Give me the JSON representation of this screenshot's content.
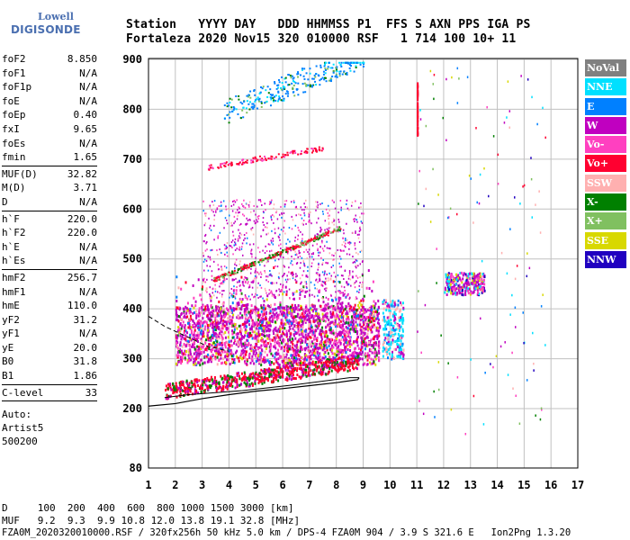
{
  "logo": {
    "line1": "Lowell",
    "line2": "DIGISONDE"
  },
  "header": {
    "line1": "Station   YYYY DAY   DDD HHMMSS P1  FFS S AXN PPS IGA PS",
    "line2": "Fortaleza 2020 Nov15 320 010000 RSF   1 714 100 10+ 11"
  },
  "params_a": [
    {
      "label": "foF2",
      "value": "8.850"
    },
    {
      "label": "foF1",
      "value": "N/A"
    },
    {
      "label": "foF1p",
      "value": "N/A"
    },
    {
      "label": "foE",
      "value": "N/A"
    },
    {
      "label": "foEp",
      "value": "0.40"
    },
    {
      "label": "fxI",
      "value": "9.65"
    },
    {
      "label": "foEs",
      "value": "N/A"
    },
    {
      "label": "fmin",
      "value": "1.65"
    }
  ],
  "params_b": [
    {
      "label": "MUF(D)",
      "value": "32.82"
    },
    {
      "label": "M(D)",
      "value": "3.71"
    },
    {
      "label": "D",
      "value": "N/A"
    }
  ],
  "params_c": [
    {
      "label": "h`F",
      "value": "220.0"
    },
    {
      "label": "h`F2",
      "value": "220.0"
    },
    {
      "label": "h`E",
      "value": "N/A"
    },
    {
      "label": "h`Es",
      "value": "N/A"
    }
  ],
  "params_d": [
    {
      "label": "hmF2",
      "value": "256.7"
    },
    {
      "label": "hmF1",
      "value": "N/A"
    },
    {
      "label": "hmE",
      "value": "110.0"
    },
    {
      "label": "yF2",
      "value": "31.2"
    },
    {
      "label": "yF1",
      "value": "N/A"
    },
    {
      "label": "yE",
      "value": "20.0"
    },
    {
      "label": "B0",
      "value": "31.8"
    },
    {
      "label": "B1",
      "value": "1.86"
    }
  ],
  "params_e": [
    {
      "label": "C-level",
      "value": "33"
    }
  ],
  "autoscaler": [
    "Auto:",
    "Artist5",
    "500200"
  ],
  "legend": [
    {
      "name": "NoVal",
      "color": "#808080"
    },
    {
      "name": "NNE",
      "color": "#00e0ff"
    },
    {
      "name": "E",
      "color": "#0080ff"
    },
    {
      "name": "W",
      "color": "#c000c0"
    },
    {
      "name": "Vo-",
      "color": "#ff40c0"
    },
    {
      "name": "Vo+",
      "color": "#ff0030"
    },
    {
      "name": "SSW",
      "color": "#ffb0b0"
    },
    {
      "name": "X-",
      "color": "#008000"
    },
    {
      "name": "X+",
      "color": "#80c060"
    },
    {
      "name": "SSE",
      "color": "#d8d800"
    },
    {
      "name": "NNW",
      "color": "#2000c0"
    }
  ],
  "bottom": {
    "line1": "D     100  200  400  600  800 1000 1500 3000 [km]",
    "line2": "MUF   9.2  9.3  9.9 10.8 12.0 13.8 19.1 32.8 [MHz]",
    "line3": "FZA0M_2020320010000.RSF / 320fx256h 50 kHz 5.0 km / DPS-4 FZA0M 904 / 3.9 S 321.6 E   Ion2Png 1.3.20"
  },
  "chart_data": {
    "type": "scatter",
    "xlim": [
      1,
      17
    ],
    "ylim": [
      80,
      900
    ],
    "x_ticks": [
      1,
      2,
      3,
      4,
      5,
      6,
      7,
      8,
      9,
      10,
      11,
      12,
      13,
      14,
      15,
      16,
      17
    ],
    "y_ticks": [
      80,
      200,
      300,
      400,
      500,
      600,
      700,
      800,
      900
    ],
    "grid": true,
    "series": [
      {
        "name": "Vo+",
        "color": "#ff0030",
        "x": [
          1.6,
          2.0,
          2.5,
          3.0,
          3.5,
          4.0,
          4.5,
          5.0,
          5.5,
          6.0,
          6.5,
          7.0,
          7.5,
          8.0,
          8.5,
          8.8
        ],
        "y": [
          222,
          225,
          228,
          232,
          236,
          240,
          244,
          249,
          253,
          258,
          263,
          268,
          272,
          275,
          280,
          290
        ]
      },
      {
        "name": "Vo+",
        "color": "#ff0030",
        "x": [
          3.6,
          4.0,
          4.5,
          5.0,
          5.5,
          6.0,
          6.5,
          7.0,
          7.5,
          8.0
        ],
        "y": [
          462,
          468,
          475,
          485,
          494,
          505,
          516,
          530,
          545,
          560
        ]
      },
      {
        "name": "Vo+",
        "color": "#ff0030",
        "x": [
          3.2,
          4.0,
          5.0,
          6.0,
          7.0
        ],
        "y": [
          685,
          690,
          700,
          710,
          720
        ]
      },
      {
        "name": "W",
        "color": "#c000c0",
        "x": [
          2.2,
          3.0,
          4.0,
          5.0,
          6.0,
          7.0,
          8.0,
          8.5
        ],
        "y": [
          300,
          320,
          330,
          340,
          345,
          350,
          355,
          360
        ]
      },
      {
        "name": "E",
        "color": "#0080ff",
        "x": [
          4.0,
          5.0,
          6.0,
          7.0,
          8.0,
          8.8
        ],
        "y": [
          800,
          815,
          830,
          850,
          870,
          890
        ]
      },
      {
        "name": "NNE",
        "color": "#00e0ff",
        "x": [
          9.7,
          10.0,
          10.3,
          12.5,
          13.0
        ],
        "y": [
          370,
          380,
          360,
          450,
          455
        ]
      }
    ]
  }
}
